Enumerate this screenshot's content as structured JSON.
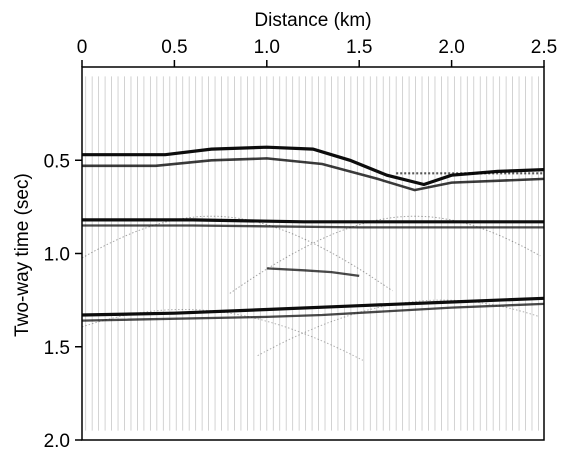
{
  "chart_data": {
    "type": "seismic-section",
    "xlabel": "Distance (km)",
    "ylabel": "Two-way time (sec)",
    "xlim": [
      0,
      2.5
    ],
    "ylim": [
      2.0,
      0
    ],
    "x_axis_position": "top",
    "x_ticks": [
      "0",
      "0.5",
      "1.0",
      "1.5",
      "2.0",
      "2.5"
    ],
    "x_tick_values": [
      0,
      0.5,
      1.0,
      1.5,
      2.0,
      2.5
    ],
    "y_ticks": [
      "0.5",
      "1.0",
      "1.5",
      "2.0"
    ],
    "y_tick_values": [
      0.5,
      1.0,
      1.5,
      2.0
    ],
    "grid": false,
    "reflectors": [
      {
        "name": "",
        "strength": 1.0,
        "points": [
          [
            0,
            0.47
          ],
          [
            0.45,
            0.47
          ],
          [
            0.7,
            0.44
          ],
          [
            1.0,
            0.43
          ],
          [
            1.25,
            0.44
          ],
          [
            1.45,
            0.5
          ],
          [
            1.65,
            0.58
          ],
          [
            1.85,
            0.63
          ],
          [
            2.0,
            0.58
          ],
          [
            2.25,
            0.56
          ],
          [
            2.5,
            0.55
          ]
        ]
      },
      {
        "name": "",
        "strength": 0.7,
        "points": [
          [
            0,
            0.53
          ],
          [
            0.4,
            0.53
          ],
          [
            0.7,
            0.5
          ],
          [
            1.0,
            0.49
          ],
          [
            1.3,
            0.52
          ],
          [
            1.6,
            0.6
          ],
          [
            1.8,
            0.66
          ],
          [
            2.0,
            0.62
          ],
          [
            2.5,
            0.6
          ]
        ]
      },
      {
        "name": "",
        "strength": 0.5,
        "points": [
          [
            1.7,
            0.57
          ],
          [
            2.0,
            0.57
          ],
          [
            2.5,
            0.57
          ]
        ]
      },
      {
        "name": "",
        "strength": 1.0,
        "points": [
          [
            0,
            0.82
          ],
          [
            0.6,
            0.82
          ],
          [
            1.2,
            0.83
          ],
          [
            1.8,
            0.83
          ],
          [
            2.5,
            0.83
          ]
        ]
      },
      {
        "name": "",
        "strength": 0.6,
        "points": [
          [
            0,
            0.85
          ],
          [
            0.6,
            0.85
          ],
          [
            1.5,
            0.86
          ],
          [
            2.5,
            0.86
          ]
        ]
      },
      {
        "name": "",
        "strength": 0.6,
        "points": [
          [
            1.0,
            1.08
          ],
          [
            1.2,
            1.09
          ],
          [
            1.35,
            1.1
          ],
          [
            1.5,
            1.12
          ]
        ]
      },
      {
        "name": "",
        "strength": 1.0,
        "points": [
          [
            0,
            1.33
          ],
          [
            0.5,
            1.32
          ],
          [
            1.0,
            1.3
          ],
          [
            1.5,
            1.28
          ],
          [
            2.0,
            1.26
          ],
          [
            2.5,
            1.24
          ]
        ]
      },
      {
        "name": "",
        "strength": 0.6,
        "points": [
          [
            0,
            1.36
          ],
          [
            1.0,
            1.34
          ],
          [
            1.3,
            1.33
          ],
          [
            2.0,
            1.29
          ],
          [
            2.5,
            1.27
          ]
        ]
      }
    ],
    "diffractions": [
      {
        "x": 0.7,
        "t": 0.8,
        "strength": 0.35
      },
      {
        "x": 1.8,
        "t": 0.8,
        "strength": 0.35
      },
      {
        "x": 0.55,
        "t": 1.3,
        "strength": 0.3
      },
      {
        "x": 1.95,
        "t": 1.25,
        "strength": 0.3
      }
    ],
    "traces": {
      "first_x": 0.02,
      "last_x": 2.5,
      "spacing": 0.035,
      "t_start": 0.05,
      "t_end": 1.95
    }
  }
}
